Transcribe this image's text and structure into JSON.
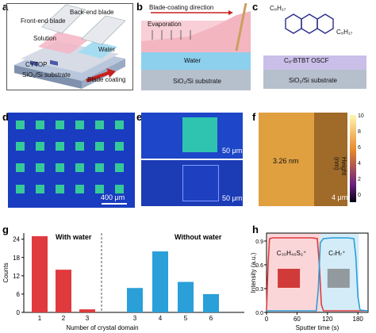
{
  "panels": {
    "a": {
      "letter": "a",
      "labels": {
        "backend": "Back-end blade",
        "frontend": "Front-end blade",
        "solution": "Solution",
        "water": "Water",
        "cytop": "CYTOP",
        "substrate": "SiO₂/Si substrate",
        "coating": "Blade coating"
      }
    },
    "b": {
      "letter": "b",
      "labels": {
        "direction": "Blade-coating direction",
        "evaporation": "Evaporation",
        "water": "Water",
        "substrate": "SiO₂/Si substrate"
      }
    },
    "c": {
      "letter": "c",
      "labels": {
        "r1": "C₈H₁₇",
        "r2": "C₈H₁₇",
        "film": "C₈-BTBT OSCF",
        "substrate": "SiO₂/Si substrate"
      }
    },
    "d": {
      "letter": "d",
      "scale": "400 μm"
    },
    "e": {
      "letter": "e",
      "scale_top": "50 μm",
      "scale_bottom": "50 μm"
    },
    "f": {
      "letter": "f",
      "step": "3.26 nm",
      "scale": "4 μm",
      "colorbar": {
        "ticks": [
          "10",
          "8",
          "6",
          "4",
          "2",
          "0"
        ],
        "label": "Height (nm)"
      }
    },
    "g": {
      "letter": "g",
      "with_water": "With water",
      "without_water": "Without water",
      "xlabel": "Number of crystal domain",
      "ylabel": "Counts"
    },
    "h": {
      "letter": "h",
      "xlabel": "Sputter time (s)",
      "ylabel": "Intensity (a.u.)",
      "label1": "C₃₀H₄₀S₂⁺",
      "label2": "C₇H₇⁺"
    }
  },
  "chart_data": [
    {
      "type": "bar",
      "title": "",
      "xlabel": "Number of crystal domain",
      "ylabel": "Counts",
      "ylim": [
        0,
        26
      ],
      "yticks": [
        0,
        6,
        12,
        18,
        24
      ],
      "series": [
        {
          "name": "With water",
          "categories": [
            "1",
            "2",
            "3"
          ],
          "values": [
            25,
            14,
            1
          ],
          "color": "#e03a3e"
        },
        {
          "name": "Without water",
          "categories": [
            "1",
            "2",
            "3",
            "4",
            "5",
            "6"
          ],
          "values": [
            0,
            0,
            8,
            20,
            10,
            6
          ],
          "color": "#2a9fd8"
        }
      ]
    },
    {
      "type": "line",
      "title": "",
      "xlabel": "Sputter time (s)",
      "ylabel": "Intensity (a.u.)",
      "xlim": [
        0,
        200
      ],
      "ylim": [
        0,
        1.0
      ],
      "xticks": [
        0,
        60,
        120,
        180
      ],
      "yticks": [
        0.0,
        0.3,
        0.6,
        0.9
      ],
      "series": [
        {
          "name": "C₃₀H₄₀S₂⁺",
          "color": "#e03a3e",
          "x": [
            0,
            3,
            6,
            12,
            30,
            60,
            90,
            100,
            104,
            108,
            112,
            200
          ],
          "y": [
            0.02,
            0.6,
            0.93,
            0.94,
            0.94,
            0.94,
            0.94,
            0.93,
            0.6,
            0.1,
            0.02,
            0.02
          ]
        },
        {
          "name": "C₇H₇⁺",
          "color": "#2a9fd8",
          "x": [
            0,
            98,
            102,
            106,
            112,
            130,
            160,
            172,
            176,
            180,
            184,
            200
          ],
          "y": [
            0.02,
            0.02,
            0.3,
            0.88,
            0.93,
            0.94,
            0.94,
            0.93,
            0.7,
            0.2,
            0.03,
            0.02
          ]
        }
      ]
    }
  ]
}
